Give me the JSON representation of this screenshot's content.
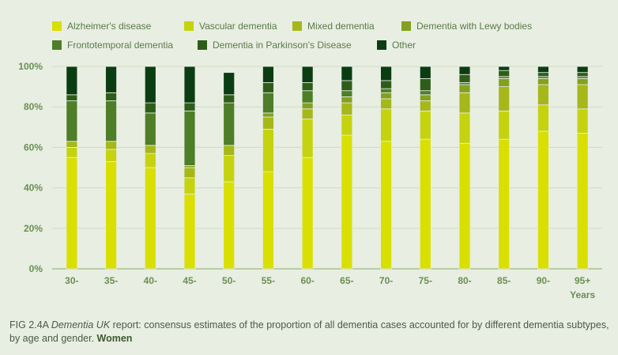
{
  "chart_data": {
    "type": "bar",
    "stacked": true,
    "title": "",
    "xlabel": "Years",
    "ylabel": "",
    "ylim": [
      0,
      100
    ],
    "yticks": [
      "0%",
      "20%",
      "40%",
      "60%",
      "80%",
      "100%"
    ],
    "categories": [
      "30-",
      "35-",
      "40-",
      "45-",
      "50-",
      "55-",
      "60-",
      "65-",
      "70-",
      "75-",
      "80-",
      "85-",
      "90-",
      "95+"
    ],
    "series": [
      {
        "name": "Alzheimer's disease",
        "color": "#d9df00",
        "values": [
          55,
          53,
          50,
          37,
          43,
          48,
          55,
          66,
          63,
          64,
          62,
          64,
          68,
          67
        ]
      },
      {
        "name": "Vascular dementia",
        "color": "#c5d30f",
        "values": [
          5,
          6,
          7,
          8,
          13,
          21,
          19,
          10,
          16,
          14,
          15,
          14,
          13,
          12
        ]
      },
      {
        "name": "Mixed dementia",
        "color": "#a6b71a",
        "values": [
          3,
          4,
          4,
          5,
          5,
          6,
          5,
          6,
          5,
          5,
          10,
          12,
          10,
          12
        ]
      },
      {
        "name": "Dementia with Lewy bodies",
        "color": "#84a020",
        "values": [
          0,
          0,
          0,
          1,
          0,
          2,
          3,
          3,
          3,
          3,
          4,
          4,
          3,
          3
        ]
      },
      {
        "name": "Frontotemporal dementia",
        "color": "#4e7e28",
        "values": [
          20,
          20,
          16,
          27,
          21,
          10,
          6,
          3,
          2,
          2,
          1,
          1,
          1,
          1
        ]
      },
      {
        "name": "Dementia in Parkinson's Disease",
        "color": "#2e5d1a",
        "values": [
          3,
          4,
          5,
          4,
          4,
          5,
          4,
          5,
          4,
          6,
          4,
          3,
          2,
          2
        ]
      },
      {
        "name": "Other",
        "color": "#0b3d12",
        "values": [
          14,
          13,
          18,
          18,
          11,
          8,
          8,
          7,
          7,
          6,
          4,
          2,
          3,
          3
        ]
      }
    ]
  },
  "caption": {
    "fig_label": "FIG 2.4A",
    "report_title": "Dementia UK",
    "text": " report: consensus estimates of the proportion of all dementia cases accounted for by different dementia subtypes, by age and gender.",
    "emphasis": "Women"
  }
}
